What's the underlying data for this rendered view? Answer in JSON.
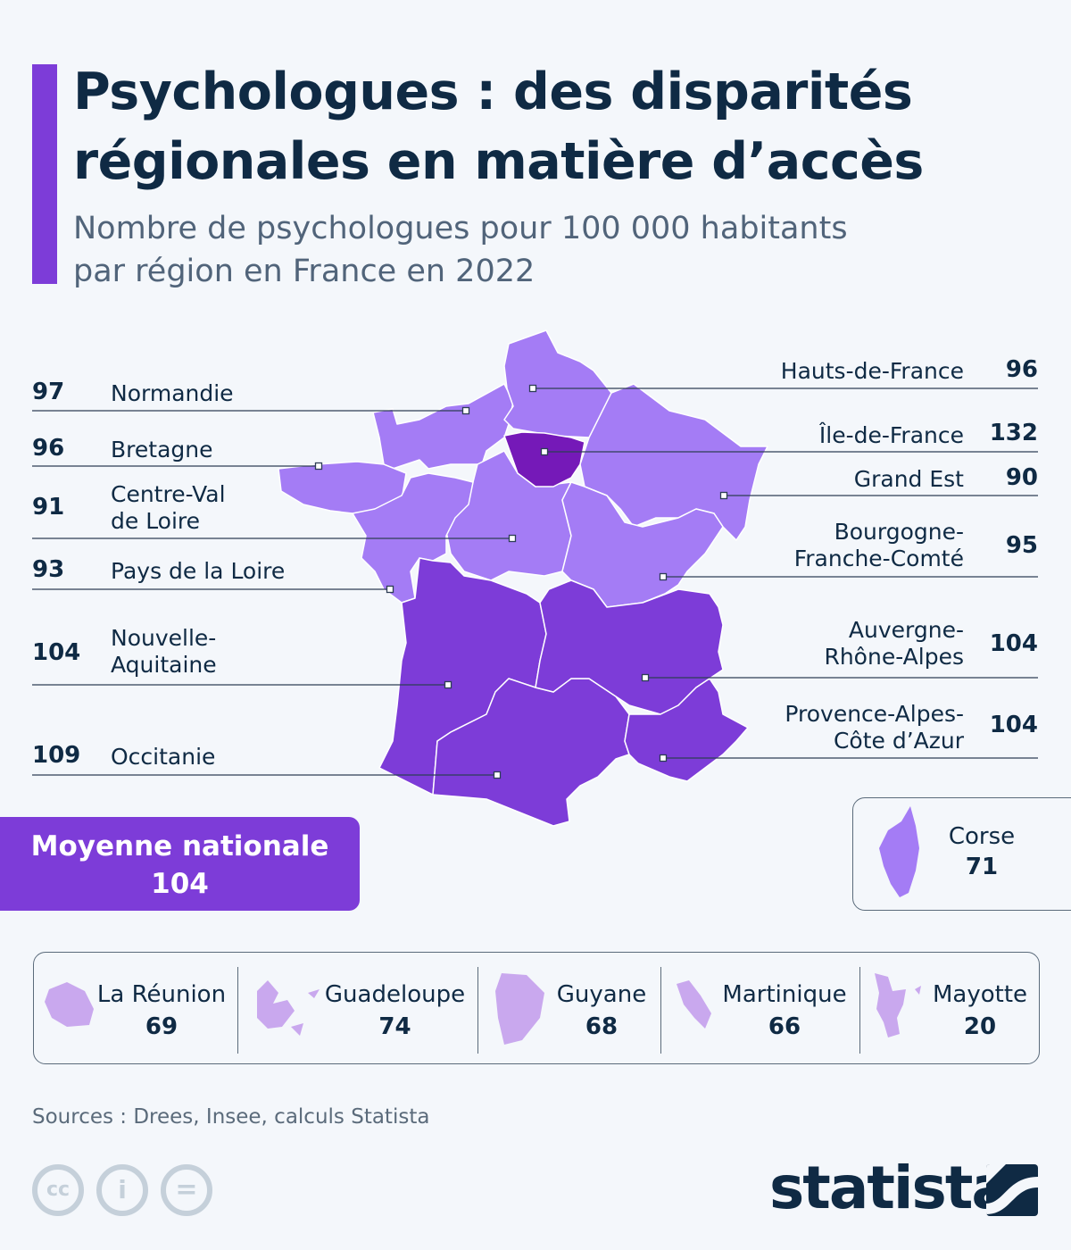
{
  "header": {
    "title_line1": "Psychologues : des disparités",
    "title_line2": "régionales en matière d’accès",
    "subtitle_line1": "Nombre de psychologues pour 100 000 habitants",
    "subtitle_line2": "par région en France en 2022"
  },
  "colors": {
    "accent": "#7d3cd8",
    "light": "#a47cf5",
    "medium": "#7d3cd8",
    "dark": "#7519b8",
    "overseas": "#c9a8ee",
    "text": "#0f2a44"
  },
  "regions": [
    {
      "name": "Normandie",
      "value": 97
    },
    {
      "name": "Bretagne",
      "value": 96
    },
    {
      "name_line1": "Centre-Val",
      "name_line2": "de Loire",
      "value": 91
    },
    {
      "name": "Pays de la Loire",
      "value": 93
    },
    {
      "name_line1": "Nouvelle-",
      "name_line2": "Aquitaine",
      "value": 104
    },
    {
      "name": "Occitanie",
      "value": 109
    },
    {
      "name": "Hauts-de-France",
      "value": 96
    },
    {
      "name": "Île-de-France",
      "value": 132
    },
    {
      "name": "Grand Est",
      "value": 90
    },
    {
      "name_line1": "Bourgogne-",
      "name_line2": "Franche-Comté",
      "value": 95
    },
    {
      "name_line1": "Auvergne-",
      "name_line2": "Rhône-Alpes",
      "value": 104
    },
    {
      "name_line1": "Provence-Alpes-",
      "name_line2": "Côte d’Azur",
      "value": 104
    }
  ],
  "national_average": {
    "label": "Moyenne nationale",
    "value": 104
  },
  "corse": {
    "name": "Corse",
    "value": 71
  },
  "overseas": [
    {
      "name": "La Réunion",
      "value": 69
    },
    {
      "name": "Guadeloupe",
      "value": 74
    },
    {
      "name": "Guyane",
      "value": 68
    },
    {
      "name": "Martinique",
      "value": 66
    },
    {
      "name": "Mayotte",
      "value": 20
    }
  ],
  "footer": {
    "source": "Sources : Drees, Insee, calculs Statista",
    "brand": "statista",
    "license_icons": [
      "cc-icon",
      "attribution-icon",
      "no-derivatives-icon"
    ]
  }
}
